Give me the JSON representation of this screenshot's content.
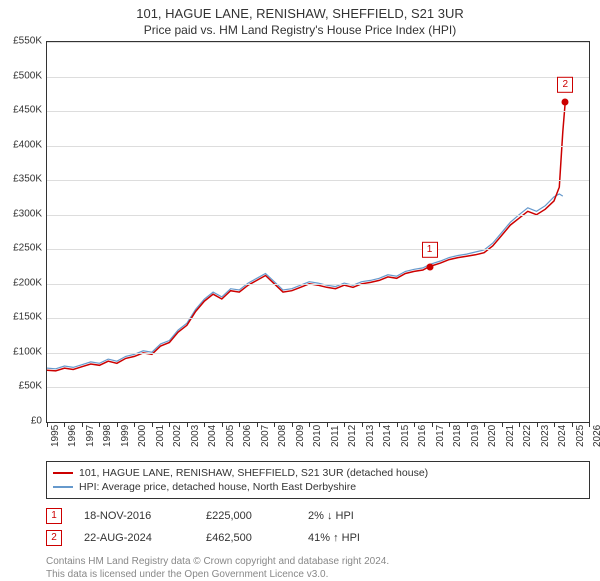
{
  "title": "101, HAGUE LANE, RENISHAW, SHEFFIELD, S21 3UR",
  "subtitle": "Price paid vs. HM Land Registry's House Price Index (HPI)",
  "chart": {
    "type": "line",
    "background_color": "#ffffff",
    "grid_color": "#dddddd",
    "border_color": "#333333",
    "title_fontsize": 13,
    "label_fontsize": 10,
    "ylim": [
      0,
      550000
    ],
    "ytick_step": 50000,
    "yticks": [
      "£0",
      "£50K",
      "£100K",
      "£150K",
      "£200K",
      "£250K",
      "£300K",
      "£350K",
      "£400K",
      "£450K",
      "£500K",
      "£550K"
    ],
    "xlim": [
      1995,
      2026
    ],
    "xticks": [
      1995,
      1996,
      1997,
      1998,
      1999,
      2000,
      2001,
      2002,
      2003,
      2004,
      2005,
      2006,
      2007,
      2008,
      2009,
      2010,
      2011,
      2012,
      2013,
      2014,
      2015,
      2016,
      2017,
      2018,
      2019,
      2020,
      2021,
      2022,
      2023,
      2024,
      2025,
      2026
    ],
    "series": [
      {
        "name": "101, HAGUE LANE, RENISHAW, SHEFFIELD, S21 3UR (detached house)",
        "color": "#cc0000",
        "line_width": 1.5,
        "data": [
          [
            1995.0,
            75000
          ],
          [
            1995.5,
            74000
          ],
          [
            1996.0,
            78000
          ],
          [
            1996.5,
            76000
          ],
          [
            1997.0,
            80000
          ],
          [
            1997.5,
            84000
          ],
          [
            1998.0,
            82000
          ],
          [
            1998.5,
            88000
          ],
          [
            1999.0,
            85000
          ],
          [
            1999.5,
            92000
          ],
          [
            2000.0,
            95000
          ],
          [
            2000.5,
            100000
          ],
          [
            2001.0,
            98000
          ],
          [
            2001.5,
            110000
          ],
          [
            2002.0,
            115000
          ],
          [
            2002.5,
            130000
          ],
          [
            2003.0,
            140000
          ],
          [
            2003.5,
            160000
          ],
          [
            2004.0,
            175000
          ],
          [
            2004.5,
            185000
          ],
          [
            2005.0,
            178000
          ],
          [
            2005.5,
            190000
          ],
          [
            2006.0,
            188000
          ],
          [
            2006.5,
            198000
          ],
          [
            2007.0,
            205000
          ],
          [
            2007.5,
            212000
          ],
          [
            2008.0,
            200000
          ],
          [
            2008.5,
            188000
          ],
          [
            2009.0,
            190000
          ],
          [
            2009.5,
            195000
          ],
          [
            2010.0,
            200000
          ],
          [
            2010.5,
            198000
          ],
          [
            2011.0,
            195000
          ],
          [
            2011.5,
            193000
          ],
          [
            2012.0,
            198000
          ],
          [
            2012.5,
            195000
          ],
          [
            2013.0,
            200000
          ],
          [
            2013.5,
            202000
          ],
          [
            2014.0,
            205000
          ],
          [
            2014.5,
            210000
          ],
          [
            2015.0,
            208000
          ],
          [
            2015.5,
            215000
          ],
          [
            2016.0,
            218000
          ],
          [
            2016.5,
            220000
          ],
          [
            2016.88,
            225000
          ],
          [
            2017.0,
            226000
          ],
          [
            2017.5,
            230000
          ],
          [
            2018.0,
            235000
          ],
          [
            2018.5,
            238000
          ],
          [
            2019.0,
            240000
          ],
          [
            2019.5,
            242000
          ],
          [
            2020.0,
            245000
          ],
          [
            2020.5,
            255000
          ],
          [
            2021.0,
            270000
          ],
          [
            2021.5,
            285000
          ],
          [
            2022.0,
            295000
          ],
          [
            2022.5,
            305000
          ],
          [
            2023.0,
            300000
          ],
          [
            2023.5,
            308000
          ],
          [
            2024.0,
            320000
          ],
          [
            2024.3,
            340000
          ],
          [
            2024.5,
            420000
          ],
          [
            2024.64,
            462500
          ]
        ]
      },
      {
        "name": "HPI: Average price, detached house, North East Derbyshire",
        "color": "#6699cc",
        "line_width": 1.2,
        "data": [
          [
            1995.0,
            78000
          ],
          [
            1995.5,
            77000
          ],
          [
            1996.0,
            81000
          ],
          [
            1996.5,
            79000
          ],
          [
            1997.0,
            83000
          ],
          [
            1997.5,
            87000
          ],
          [
            1998.0,
            85000
          ],
          [
            1998.5,
            91000
          ],
          [
            1999.0,
            88000
          ],
          [
            1999.5,
            95000
          ],
          [
            2000.0,
            98000
          ],
          [
            2000.5,
            103000
          ],
          [
            2001.0,
            101000
          ],
          [
            2001.5,
            113000
          ],
          [
            2002.0,
            118000
          ],
          [
            2002.5,
            133000
          ],
          [
            2003.0,
            143000
          ],
          [
            2003.5,
            163000
          ],
          [
            2004.0,
            178000
          ],
          [
            2004.5,
            188000
          ],
          [
            2005.0,
            181000
          ],
          [
            2005.5,
            193000
          ],
          [
            2006.0,
            191000
          ],
          [
            2006.5,
            201000
          ],
          [
            2007.0,
            208000
          ],
          [
            2007.5,
            215000
          ],
          [
            2008.0,
            203000
          ],
          [
            2008.5,
            191000
          ],
          [
            2009.0,
            193000
          ],
          [
            2009.5,
            198000
          ],
          [
            2010.0,
            203000
          ],
          [
            2010.5,
            201000
          ],
          [
            2011.0,
            198000
          ],
          [
            2011.5,
            196000
          ],
          [
            2012.0,
            201000
          ],
          [
            2012.5,
            198000
          ],
          [
            2013.0,
            203000
          ],
          [
            2013.5,
            205000
          ],
          [
            2014.0,
            208000
          ],
          [
            2014.5,
            213000
          ],
          [
            2015.0,
            211000
          ],
          [
            2015.5,
            218000
          ],
          [
            2016.0,
            221000
          ],
          [
            2016.5,
            223000
          ],
          [
            2016.88,
            228000
          ],
          [
            2017.0,
            229000
          ],
          [
            2017.5,
            233000
          ],
          [
            2018.0,
            238000
          ],
          [
            2018.5,
            241000
          ],
          [
            2019.0,
            243000
          ],
          [
            2019.5,
            246000
          ],
          [
            2020.0,
            249000
          ],
          [
            2020.5,
            259000
          ],
          [
            2021.0,
            274000
          ],
          [
            2021.5,
            289000
          ],
          [
            2022.0,
            300000
          ],
          [
            2022.5,
            310000
          ],
          [
            2023.0,
            305000
          ],
          [
            2023.5,
            313000
          ],
          [
            2024.0,
            326000
          ],
          [
            2024.3,
            330000
          ],
          [
            2024.5,
            327000
          ]
        ]
      }
    ],
    "markers": [
      {
        "n": "1",
        "x": 2016.88,
        "y": 225000
      },
      {
        "n": "2",
        "x": 2024.64,
        "y": 462500
      }
    ]
  },
  "legend": {
    "items": [
      {
        "label": "101, HAGUE LANE, RENISHAW, SHEFFIELD, S21 3UR (detached house)",
        "color": "#cc0000"
      },
      {
        "label": "HPI: Average price, detached house, North East Derbyshire",
        "color": "#6699cc"
      }
    ]
  },
  "sales": [
    {
      "n": "1",
      "date": "18-NOV-2016",
      "price": "£225,000",
      "diff": "2% ↓ HPI"
    },
    {
      "n": "2",
      "date": "22-AUG-2024",
      "price": "£462,500",
      "diff": "41% ↑ HPI"
    }
  ],
  "footer_line1": "Contains HM Land Registry data © Crown copyright and database right 2024.",
  "footer_line2": "This data is licensed under the Open Government Licence v3.0."
}
